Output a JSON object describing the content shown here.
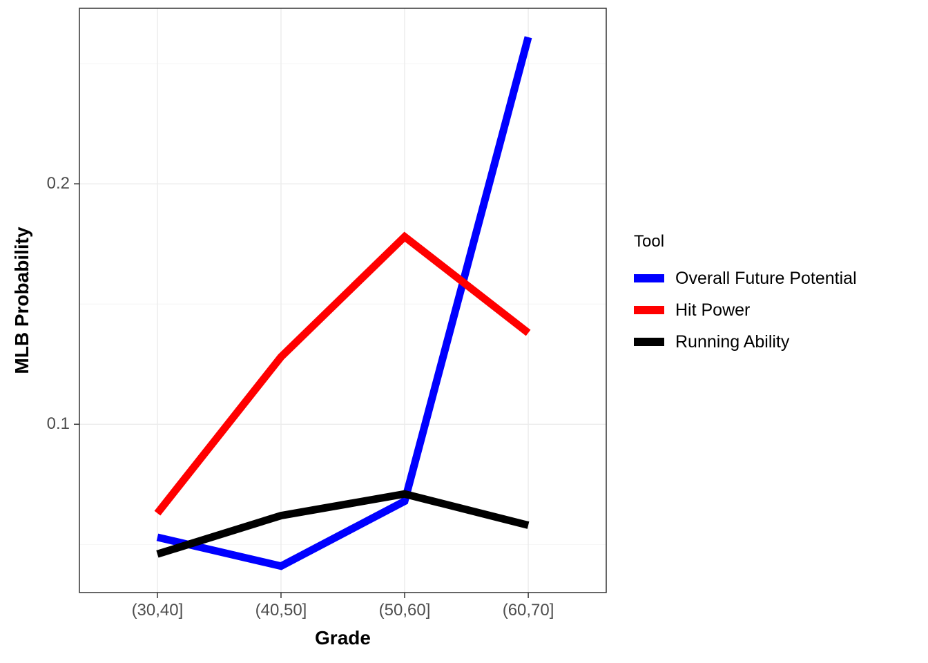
{
  "chart_data": {
    "type": "line",
    "title": "",
    "xlabel": "Grade",
    "ylabel": "MLB Probability",
    "categories": [
      "(30,40]",
      "(40,50]",
      "(50,60]",
      "(60,70]"
    ],
    "y_ticks": [
      0.1,
      0.2
    ],
    "y_minor_ticks": [
      0.05,
      0.15,
      0.25
    ],
    "ylim": [
      0.03,
      0.273
    ],
    "grid": true,
    "series": [
      {
        "name": "Overall Future Potential",
        "color": "#0000FF",
        "values": [
          0.053,
          0.041,
          0.068,
          0.261
        ]
      },
      {
        "name": "Hit Power",
        "color": "#FF0000",
        "values": [
          0.063,
          0.128,
          0.178,
          0.138
        ]
      },
      {
        "name": "Running Ability",
        "color": "#000000",
        "values": [
          0.046,
          0.062,
          0.071,
          0.058
        ]
      }
    ],
    "legend": {
      "title": "Tool",
      "position": "right"
    },
    "style": {
      "panel_border_color": "#333333",
      "grid_major_color": "#ebebeb",
      "grid_minor_color": "#f4f4f4",
      "tick_color": "#333333",
      "line_width": 11
    }
  }
}
